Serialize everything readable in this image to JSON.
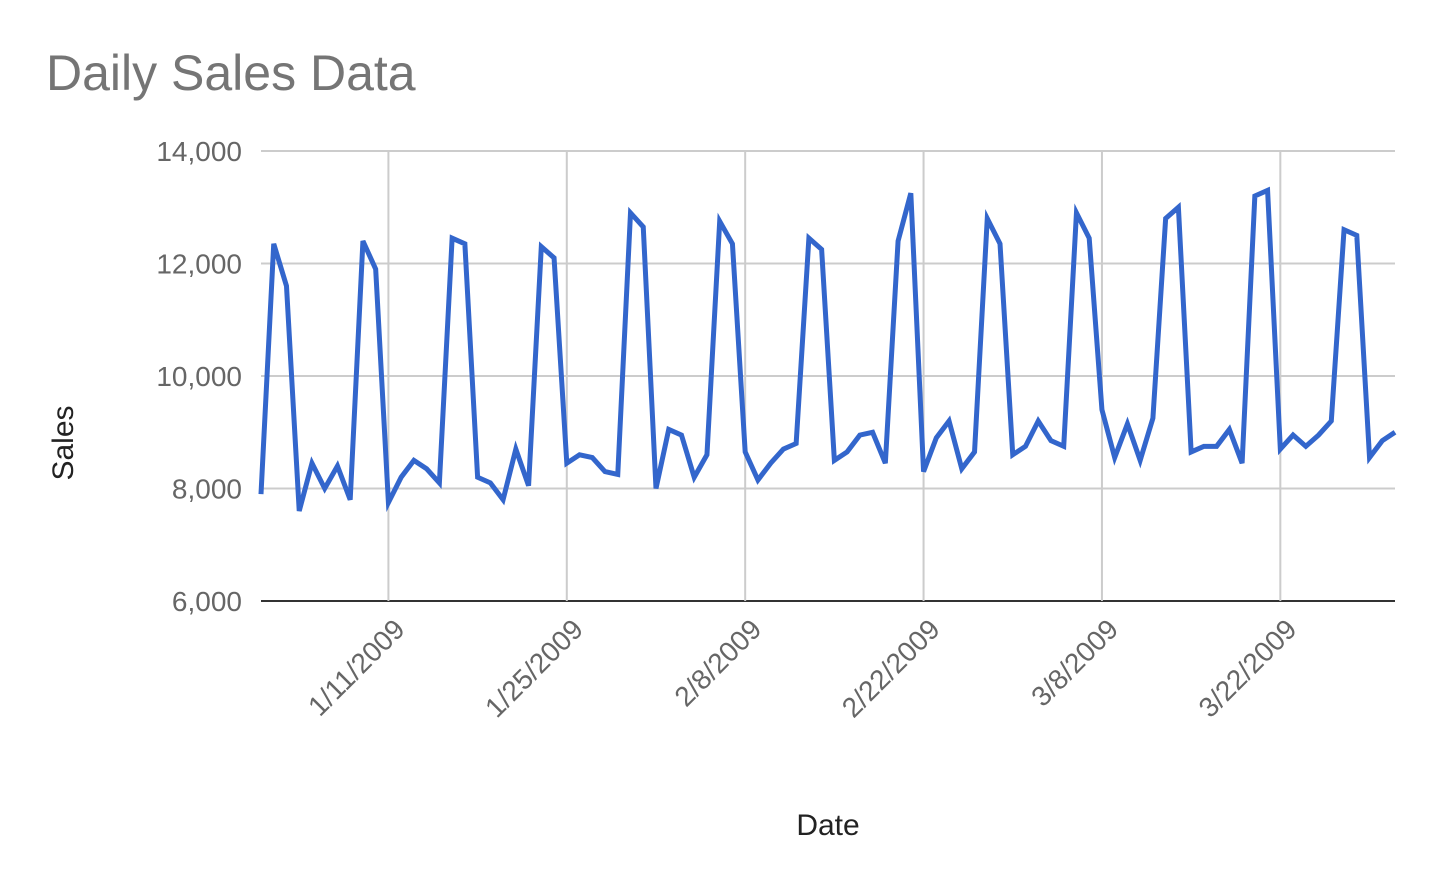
{
  "chart_data": {
    "type": "line",
    "title": "Daily Sales Data",
    "x_label": "Date",
    "y_label": "Sales",
    "x": [
      "1/1/2009",
      "1/2/2009",
      "1/3/2009",
      "1/4/2009",
      "1/5/2009",
      "1/6/2009",
      "1/7/2009",
      "1/8/2009",
      "1/9/2009",
      "1/10/2009",
      "1/11/2009",
      "1/12/2009",
      "1/13/2009",
      "1/14/2009",
      "1/15/2009",
      "1/16/2009",
      "1/17/2009",
      "1/18/2009",
      "1/19/2009",
      "1/20/2009",
      "1/21/2009",
      "1/22/2009",
      "1/23/2009",
      "1/24/2009",
      "1/25/2009",
      "1/26/2009",
      "1/27/2009",
      "1/28/2009",
      "1/29/2009",
      "1/30/2009",
      "1/31/2009",
      "2/1/2009",
      "2/2/2009",
      "2/3/2009",
      "2/4/2009",
      "2/5/2009",
      "2/6/2009",
      "2/7/2009",
      "2/8/2009",
      "2/9/2009",
      "2/10/2009",
      "2/11/2009",
      "2/12/2009",
      "2/13/2009",
      "2/14/2009",
      "2/15/2009",
      "2/16/2009",
      "2/17/2009",
      "2/18/2009",
      "2/19/2009",
      "2/20/2009",
      "2/21/2009",
      "2/22/2009",
      "2/23/2009",
      "2/24/2009",
      "2/25/2009",
      "2/26/2009",
      "2/27/2009",
      "2/28/2009",
      "3/1/2009",
      "3/2/2009",
      "3/3/2009",
      "3/4/2009",
      "3/5/2009",
      "3/6/2009",
      "3/7/2009",
      "3/8/2009",
      "3/9/2009",
      "3/10/2009",
      "3/11/2009",
      "3/12/2009",
      "3/13/2009",
      "3/14/2009",
      "3/15/2009",
      "3/16/2009",
      "3/17/2009",
      "3/18/2009",
      "3/19/2009",
      "3/20/2009",
      "3/21/2009",
      "3/22/2009",
      "3/23/2009",
      "3/24/2009",
      "3/25/2009",
      "3/26/2009",
      "3/27/2009",
      "3/28/2009",
      "3/29/2009",
      "3/30/2009",
      "3/31/2009"
    ],
    "series": [
      {
        "name": "Sales",
        "color": "#3366cc",
        "values": [
          7900,
          12350,
          11600,
          7600,
          8450,
          8000,
          8400,
          7800,
          12400,
          11900,
          7750,
          8200,
          8500,
          8350,
          8100,
          12450,
          12350,
          8200,
          8100,
          7800,
          8700,
          8050,
          12300,
          12100,
          8450,
          8600,
          8550,
          8300,
          8250,
          12900,
          12650,
          8000,
          9050,
          8950,
          8200,
          8600,
          12750,
          12350,
          8650,
          8150,
          8450,
          8700,
          8800,
          12450,
          12250,
          8500,
          8650,
          8950,
          9000,
          8450,
          12400,
          13250,
          8300,
          8900,
          9200,
          8350,
          8650,
          12800,
          12350,
          8600,
          8750,
          9200,
          8850,
          8750,
          12900,
          12450,
          9400,
          8550,
          9150,
          8500,
          9250,
          12800,
          13000,
          8650,
          8750,
          8750,
          9050,
          8450,
          13200,
          13300,
          8700,
          8950,
          8750,
          8950,
          9200,
          12600,
          12500,
          8550,
          8850,
          9000
        ]
      }
    ],
    "xlim": [
      "1/1/2009",
      "3/31/2009"
    ],
    "xticks": [
      "1/11/2009",
      "1/25/2009",
      "2/8/2009",
      "2/22/2009",
      "3/8/2009",
      "3/22/2009"
    ],
    "ylim": [
      6000,
      14000
    ],
    "yticks": [
      {
        "value": 6000,
        "label": "6,000"
      },
      {
        "value": 8000,
        "label": "8,000"
      },
      {
        "value": 10000,
        "label": "10,000"
      },
      {
        "value": 12000,
        "label": "12,000"
      },
      {
        "value": 14000,
        "label": "14,000"
      }
    ],
    "grid": true
  }
}
